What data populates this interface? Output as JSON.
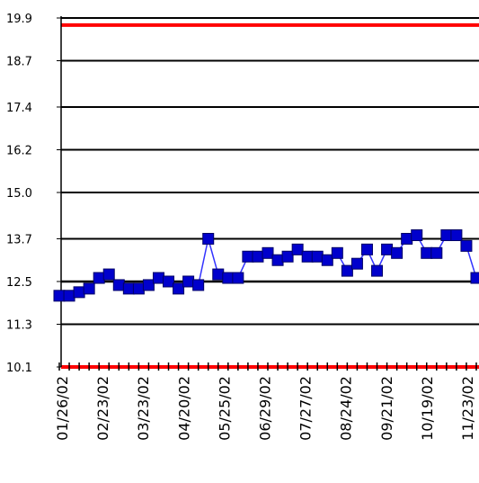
{
  "chart_data": {
    "type": "line",
    "title": "",
    "xlabel": "",
    "ylabel": "",
    "ylim": [
      10.1,
      19.9
    ],
    "y_ticks": [
      "19.9",
      "18.7",
      "17.4",
      "16.2",
      "15.0",
      "13.7",
      "12.5",
      "11.3",
      "10.1"
    ],
    "x_tick_labels": [
      "01/26/02",
      "02/23/02",
      "03/23/02",
      "04/20/02",
      "05/25/02",
      "06/29/02",
      "07/27/02",
      "08/24/02",
      "09/21/02",
      "10/19/02",
      "11/23/02"
    ],
    "grid": "horizontal",
    "limit_lines": [
      {
        "value": 19.7,
        "color": "#ff0000"
      },
      {
        "value": 10.1,
        "color": "#ff0000"
      }
    ],
    "reference_line": {
      "value": 12.5,
      "color": "#000000"
    },
    "series": [
      {
        "color": "#0000cc",
        "values": [
          12.1,
          12.1,
          12.2,
          12.3,
          12.6,
          12.7,
          12.4,
          12.3,
          12.3,
          12.4,
          12.6,
          12.5,
          12.3,
          12.5,
          12.4,
          13.7,
          12.7,
          12.6,
          12.6,
          13.2,
          13.2,
          13.3,
          13.1,
          13.2,
          13.4,
          13.2,
          13.2,
          13.1,
          13.3,
          12.8,
          13.0,
          13.4,
          12.8,
          13.4,
          13.3,
          13.7,
          13.8,
          13.3,
          13.3,
          13.8,
          13.8,
          13.5,
          12.6
        ]
      }
    ]
  }
}
